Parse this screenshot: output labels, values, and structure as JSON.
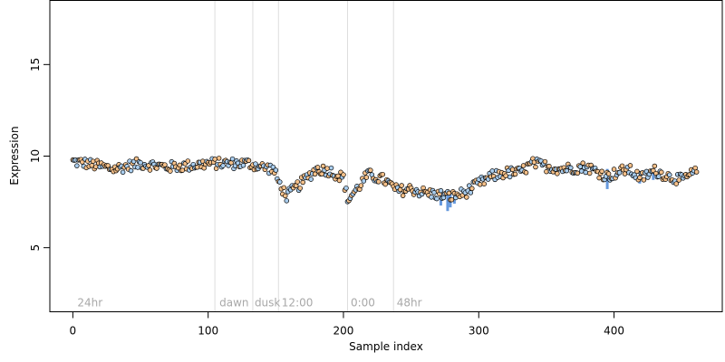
{
  "chart_data": {
    "type": "scatter",
    "title": "",
    "xlabel": "Sample index",
    "ylabel": "Expression",
    "xlim": [
      -17,
      480
    ],
    "ylim": [
      1.5,
      18.5
    ],
    "x_ticks": [
      0,
      100,
      200,
      300,
      400
    ],
    "y_ticks": [
      5,
      10,
      15
    ],
    "grid": false,
    "legend": "none",
    "vlines": [
      105,
      133,
      152,
      203,
      237
    ],
    "annotations": [
      {
        "text": "24hr",
        "x": 2,
        "y": 2.0
      },
      {
        "text": "dawn",
        "x": 107,
        "y": 2.0
      },
      {
        "text": "dusk",
        "x": 133,
        "y": 2.0
      },
      {
        "text": "12:00",
        "x": 153,
        "y": 2.0
      },
      {
        "text": "0:00",
        "x": 204,
        "y": 2.0
      },
      {
        "text": "48hr",
        "x": 238,
        "y": 2.0
      }
    ],
    "colors": {
      "point_a": "#f5c089",
      "point_b": "#a9cdee",
      "error_bar": "#6699dd",
      "vline": "#dddddd",
      "frame": "#000000"
    },
    "profile": [
      [
        0,
        9.7
      ],
      [
        10,
        9.6
      ],
      [
        30,
        9.3
      ],
      [
        50,
        9.6
      ],
      [
        70,
        9.4
      ],
      [
        90,
        9.5
      ],
      [
        100,
        9.6
      ],
      [
        110,
        9.6
      ],
      [
        130,
        9.6
      ],
      [
        140,
        9.4
      ],
      [
        148,
        9.3
      ],
      [
        152,
        8.6
      ],
      [
        158,
        7.8
      ],
      [
        162,
        8.1
      ],
      [
        170,
        8.6
      ],
      [
        180,
        9.3
      ],
      [
        190,
        9.2
      ],
      [
        200,
        8.8
      ],
      [
        203,
        7.6
      ],
      [
        210,
        8.2
      ],
      [
        218,
        9.0
      ],
      [
        230,
        8.7
      ],
      [
        240,
        8.1
      ],
      [
        250,
        8.2
      ],
      [
        260,
        8.0
      ],
      [
        270,
        7.9
      ],
      [
        280,
        7.8
      ],
      [
        290,
        8.0
      ],
      [
        300,
        8.5
      ],
      [
        310,
        8.9
      ],
      [
        320,
        9.1
      ],
      [
        330,
        9.1
      ],
      [
        340,
        9.6
      ],
      [
        360,
        9.3
      ],
      [
        380,
        9.4
      ],
      [
        395,
        8.9
      ],
      [
        410,
        9.3
      ],
      [
        420,
        8.8
      ],
      [
        430,
        9.2
      ],
      [
        440,
        8.9
      ],
      [
        450,
        8.7
      ],
      [
        462,
        9.2
      ]
    ],
    "series_count": 462,
    "error_bars": [
      {
        "x": 272,
        "y_low": 7.3,
        "y_high": 8.1
      },
      {
        "x": 277,
        "y_low": 7.0,
        "y_high": 8.1
      },
      {
        "x": 279,
        "y_low": 7.2,
        "y_high": 8.0
      },
      {
        "x": 282,
        "y_low": 7.4,
        "y_high": 8.1
      },
      {
        "x": 395,
        "y_low": 8.2,
        "y_high": 9.3
      },
      {
        "x": 419,
        "y_low": 8.5,
        "y_high": 9.0
      },
      {
        "x": 429,
        "y_low": 8.7,
        "y_high": 9.3
      }
    ]
  }
}
